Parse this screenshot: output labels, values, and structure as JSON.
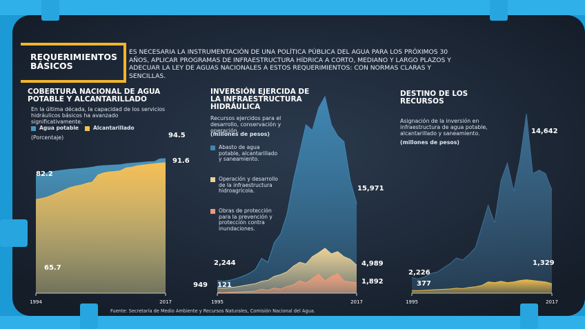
{
  "header": {
    "title": "REQUERIMIENTOS BÁSICOS",
    "text": "ES NECESARIA LA INSTRUMENTACIÓN DE UNA POLÍTICA PÚBLICA DEL AGUA PARA LOS PRÓXIMOS 30 AÑOS, APLICAR PROGRAMAS DE INFRAESTRUCTURA HÍDRICA A CORTO, MEDIANO Y LARGO PLAZOS Y ADECUAR LA LEY DE AGUAS NACIONALES A ESTOS REQUERIMIENTOS: CON NORMAS CLARAS Y SENCILLAS."
  },
  "footer": {
    "source": "Fuente: Secretaría de Medio Ambiente y Recursos Naturales, Comisión Nacional del Agua."
  },
  "chart_data": [
    {
      "type": "area",
      "title": "COBERTURA NACIONAL DE AGUA POTABLE Y ALCANTARILLADO",
      "subtitle": "En la última década, la capacidad de los servicios hidráulicos básicos ha avanzado significativamente.",
      "unit": "(Porcentaje)",
      "x": [
        1994,
        1995,
        1996,
        1997,
        1998,
        1999,
        2000,
        2001,
        2002,
        2003,
        2004,
        2005,
        2006,
        2007,
        2008,
        2009,
        2010,
        2011,
        2012,
        2013,
        2014,
        2015,
        2016,
        2017
      ],
      "xlim": [
        1994,
        2017
      ],
      "xticks": [
        1994,
        2017
      ],
      "series": [
        {
          "name": "Agua potable",
          "color": "#4a95bd",
          "values": [
            82.2,
            83.5,
            84.6,
            85.5,
            86.0,
            86.5,
            87.0,
            87.3,
            87.6,
            88.0,
            88.5,
            89.2,
            89.6,
            89.8,
            90.0,
            90.3,
            90.9,
            91.3,
            91.6,
            92.0,
            92.3,
            92.4,
            94.4,
            94.5
          ]
        },
        {
          "name": "Alcantarillado",
          "color": "#f6bf55",
          "values": [
            65.7,
            66.5,
            67.5,
            69.0,
            70.8,
            72.4,
            74.1,
            75.2,
            76.0,
            77.2,
            78.0,
            83.0,
            84.5,
            85.2,
            85.5,
            86.0,
            88.0,
            88.5,
            89.5,
            90.0,
            90.5,
            90.9,
            91.4,
            91.6
          ]
        }
      ]
    },
    {
      "type": "area",
      "title": "INVERSIÓN EJERCIDA DE LA INFRAESTRUCTURA HIDRÁULICA",
      "subtitle": "Recursos ejercidos para el desarrollo, conservación y operación.",
      "unit": "(millones de pesos)",
      "x": [
        1995,
        1996,
        1997,
        1998,
        1999,
        2000,
        2001,
        2002,
        2003,
        2004,
        2005,
        2006,
        2007,
        2008,
        2009,
        2010,
        2011,
        2012,
        2013,
        2014,
        2015,
        2016,
        2017
      ],
      "xlim": [
        1995,
        2017
      ],
      "xticks": [
        1995,
        2017
      ],
      "series": [
        {
          "name": "Abasto de agua potable, alcantarillado y saneamiento.",
          "color": "#3f87b3",
          "values": [
            2244,
            2100,
            2300,
            2600,
            3000,
            3500,
            4200,
            6200,
            5500,
            9000,
            10500,
            14000,
            20000,
            25000,
            30000,
            29000,
            33000,
            35000,
            30000,
            28000,
            27000,
            20000,
            15971
          ],
          "value_labels": [
            "2,244",
            null,
            null,
            null,
            null,
            null,
            null,
            null,
            null,
            null,
            null,
            null,
            null,
            null,
            null,
            null,
            null,
            null,
            null,
            null,
            null,
            null,
            "15,971"
          ]
        },
        {
          "name": "Operación y desarrollo de la infraestructura hidroagrícola.",
          "color": "#ecd095",
          "values": [
            949,
            900,
            1000,
            1100,
            1300,
            1500,
            1700,
            2100,
            2300,
            3000,
            3300,
            3800,
            4800,
            5500,
            5200,
            6500,
            7200,
            8000,
            7000,
            7400,
            6500,
            6000,
            4989
          ],
          "value_labels": [
            "949",
            null,
            null,
            null,
            null,
            null,
            null,
            null,
            null,
            null,
            null,
            null,
            null,
            null,
            null,
            null,
            null,
            null,
            null,
            null,
            null,
            null,
            "4,989"
          ]
        },
        {
          "name": "Obras de protección para la prevención y protección contra inundaciones.",
          "color": "#ec9a7a",
          "values": [
            121,
            100,
            150,
            200,
            250,
            300,
            350,
            700,
            500,
            900,
            700,
            1200,
            1500,
            2200,
            1800,
            2600,
            3400,
            2200,
            3000,
            3500,
            2200,
            2000,
            1892
          ],
          "value_labels": [
            "121",
            null,
            null,
            null,
            null,
            null,
            null,
            null,
            null,
            null,
            null,
            null,
            null,
            null,
            null,
            null,
            null,
            null,
            null,
            null,
            null,
            null,
            "1,892"
          ]
        }
      ]
    },
    {
      "type": "area",
      "title": "DESTINO DE LOS RECURSOS",
      "subtitle": "Asignación de la inversión en infraestructura de agua potable, alcantarillado y saneamiento.",
      "unit": "(millones de pesos)",
      "x": [
        1995,
        1996,
        1997,
        1998,
        1999,
        2000,
        2001,
        2002,
        2003,
        2004,
        2005,
        2006,
        2007,
        2008,
        2009,
        2010,
        2011,
        2012,
        2013,
        2014,
        2015,
        2016,
        2017
      ],
      "xlim": [
        1995,
        2017
      ],
      "xticks": [
        1995,
        2017
      ],
      "series": [
        {
          "color": "#3d6f93",
          "values": [
            2226,
            2000,
            2300,
            2800,
            3000,
            3600,
            4200,
            5000,
            4700,
            5500,
            6500,
            9500,
            12500,
            10000,
            16000,
            18500,
            14500,
            19000,
            25500,
            17000,
            17500,
            17000,
            14642
          ],
          "value_labels": [
            "2,226",
            null,
            null,
            null,
            null,
            null,
            null,
            null,
            null,
            null,
            null,
            null,
            null,
            null,
            null,
            null,
            null,
            null,
            null,
            null,
            null,
            null,
            "14,642"
          ]
        },
        {
          "color": "#e9b94c",
          "values": [
            377,
            350,
            400,
            450,
            500,
            550,
            600,
            700,
            650,
            800,
            900,
            1100,
            1600,
            1500,
            1700,
            1500,
            1600,
            1800,
            1900,
            1800,
            1700,
            1600,
            1329
          ],
          "value_labels": [
            "377",
            null,
            null,
            null,
            null,
            null,
            null,
            null,
            null,
            null,
            null,
            null,
            null,
            null,
            null,
            null,
            null,
            null,
            null,
            null,
            null,
            null,
            "1,329"
          ]
        }
      ]
    }
  ]
}
